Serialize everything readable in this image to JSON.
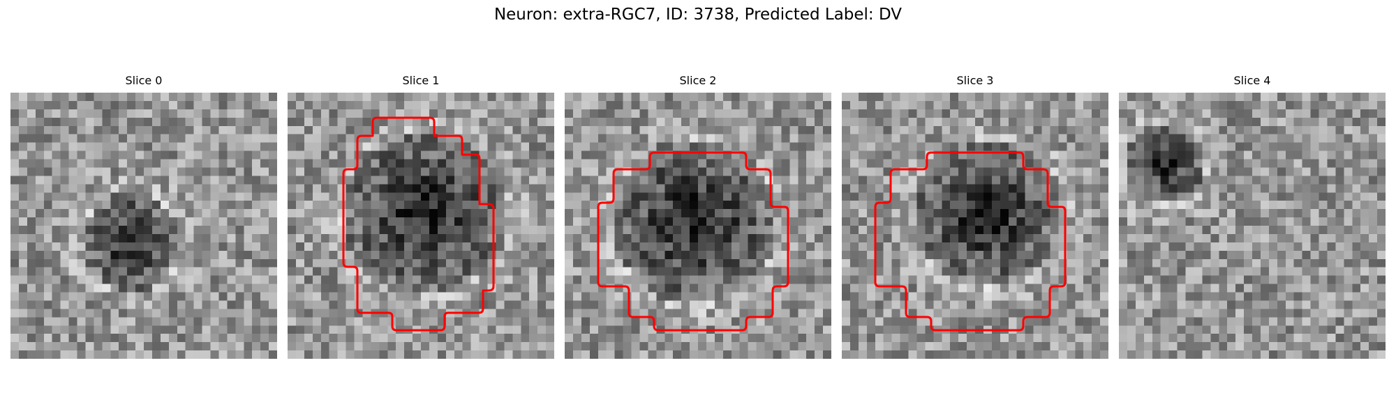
{
  "figure": {
    "title": "Neuron: extra-RGC7, ID: 3738, Predicted Label: DV"
  },
  "colors": {
    "contour": "#ff0000",
    "background": "#ffffff"
  },
  "grid_size": 32,
  "panels": [
    {
      "title": "Slice 0",
      "has_contour": false,
      "dark_blob": {
        "cx": 14.0,
        "cy": 17.5,
        "r": 6.0
      }
    },
    {
      "title": "Slice 1",
      "has_contour": true,
      "dark_blob": {
        "cx": 16.0,
        "cy": 14.0,
        "r": 10.0
      }
    },
    {
      "title": "Slice 2",
      "has_contour": true,
      "dark_blob": {
        "cx": 15.0,
        "cy": 15.0,
        "r": 10.0
      }
    },
    {
      "title": "Slice 3",
      "has_contour": true,
      "dark_blob": {
        "cx": 17.0,
        "cy": 14.0,
        "r": 9.0
      }
    },
    {
      "title": "Slice 4",
      "has_contour": false,
      "dark_blob": {
        "cx": 5.0,
        "cy": 8.0,
        "r": 5.0
      }
    }
  ]
}
